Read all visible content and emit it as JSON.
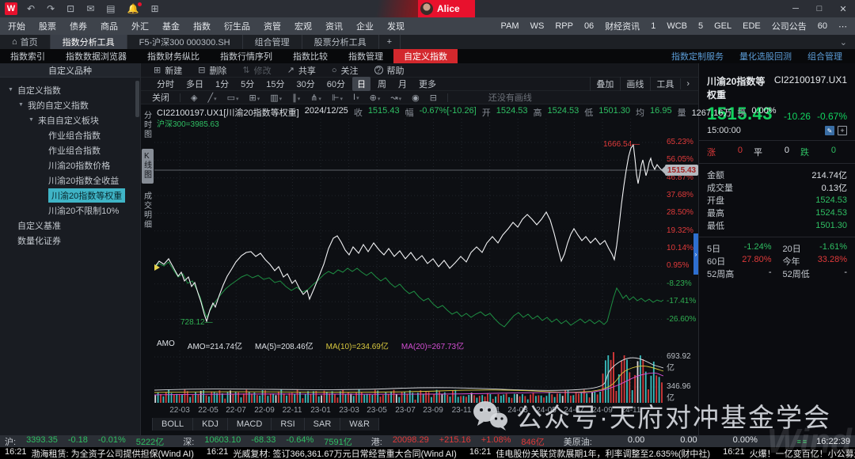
{
  "titlebar": {
    "logo": "W",
    "icons": [
      {
        "name": "undo-icon",
        "glyph": "↶"
      },
      {
        "name": "redo-icon",
        "glyph": "↷"
      },
      {
        "name": "screenshot-icon",
        "glyph": "⊡"
      },
      {
        "name": "chat-icon",
        "glyph": "✉"
      },
      {
        "name": "wp-icon",
        "glyph": "▤"
      },
      {
        "name": "bell-icon",
        "glyph": "🔔"
      },
      {
        "name": "f1-icon",
        "glyph": "⊞"
      }
    ],
    "user": "Alice",
    "window_controls": [
      {
        "name": "minimize-button",
        "glyph": "─"
      },
      {
        "name": "maximize-button",
        "glyph": "□"
      },
      {
        "name": "close-button",
        "glyph": "✕"
      }
    ]
  },
  "menu": {
    "items": [
      "开始",
      "股票",
      "债券",
      "商品",
      "外汇",
      "基金",
      "指数",
      "衍生品",
      "资管",
      "宏观",
      "资讯",
      "企业",
      "发现"
    ],
    "right_items": [
      "PAM",
      "WS",
      "RPP",
      "06",
      "财经资讯",
      "1",
      "WCB",
      "5",
      "GEL",
      "EDE",
      "公司公告",
      "60",
      "⋯"
    ]
  },
  "tabs": {
    "items": [
      {
        "label": "首页",
        "home": true
      },
      {
        "label": "指数分析工具",
        "active": true
      },
      {
        "label": "F5-沪深300 000300.SH"
      },
      {
        "label": "组合管理"
      },
      {
        "label": "股票分析工具"
      }
    ],
    "add": "+",
    "chevron": "⌄"
  },
  "subtabs": {
    "items": [
      {
        "label": "指数索引"
      },
      {
        "label": "指数数据浏览器"
      },
      {
        "label": "指数财务纵比"
      },
      {
        "label": "指数行情序列"
      },
      {
        "label": "指数比较"
      },
      {
        "label": "指数管理"
      },
      {
        "label": "自定义指数",
        "active": true
      }
    ],
    "right_links": [
      "指数定制服务",
      "量化选股回测",
      "组合管理"
    ]
  },
  "sidebar": {
    "header": "自定义品种",
    "tree": [
      {
        "label": "自定义指数",
        "depth": 0,
        "arrow": true
      },
      {
        "label": "我的自定义指数",
        "depth": 1,
        "arrow": true
      },
      {
        "label": "来自自定义板块",
        "depth": 2,
        "arrow": true
      },
      {
        "label": "作业组合指数",
        "depth": 3
      },
      {
        "label": "作业组合指数",
        "depth": 3
      },
      {
        "label": "川渝20指数价格",
        "depth": 3
      },
      {
        "label": "川渝20指数全收益",
        "depth": 3
      },
      {
        "label": "川渝20指数等权重",
        "depth": 3,
        "selected": true
      },
      {
        "label": "川渝20不限制10%",
        "depth": 3
      },
      {
        "label": "自定义基准",
        "depth": 0
      },
      {
        "label": "数量化证券",
        "depth": 0
      }
    ]
  },
  "toolbar": {
    "actions": [
      {
        "name": "new-button",
        "glyph": "⊞",
        "label": "新建"
      },
      {
        "name": "delete-button",
        "glyph": "⊟",
        "label": "删除"
      },
      {
        "name": "modify-button",
        "glyph": "⇅",
        "label": "修改",
        "disabled": true
      },
      {
        "name": "share-button",
        "glyph": "↗",
        "label": "共享"
      },
      {
        "name": "follow-button",
        "glyph": "○",
        "label": "关注"
      },
      {
        "name": "help-button",
        "glyph": "?",
        "label": "帮助",
        "circle": true
      }
    ],
    "periods": [
      "分时",
      "多日",
      "1分",
      "5分",
      "15分",
      "30分",
      "60分",
      "日",
      "周",
      "月",
      "更多"
    ],
    "active_period": "日",
    "overlay_tools": [
      "叠加",
      "画线",
      "工具"
    ],
    "overlay_arrow": "›",
    "drawing": {
      "close": "关闭",
      "icons": [
        {
          "name": "marker-tool-icon",
          "glyph": "◈"
        },
        {
          "name": "line-tool-icon",
          "glyph": "╱",
          "caret": true
        },
        {
          "name": "shape-tool-icon",
          "glyph": "▭",
          "caret": true
        },
        {
          "name": "rect-tool-icon",
          "glyph": "⊞",
          "caret": true
        },
        {
          "name": "band-tool-icon",
          "glyph": "▥",
          "caret": true
        },
        {
          "name": "parallel-tool-icon",
          "glyph": "∥",
          "caret": true
        },
        {
          "name": "fan-tool-icon",
          "glyph": "⋔",
          "caret": true
        },
        {
          "name": "fib-tool-icon",
          "glyph": "⊩",
          "caret": true
        },
        {
          "name": "text-tool-icon",
          "glyph": "I",
          "caret": true
        },
        {
          "name": "callout-tool-icon",
          "glyph": "⊕",
          "caret": true
        },
        {
          "name": "wave-tool-icon",
          "glyph": "↝",
          "caret": true
        },
        {
          "name": "visibility-icon",
          "glyph": "◉"
        },
        {
          "name": "trash-icon",
          "glyph": "⊟"
        }
      ],
      "note": "还没有画线"
    }
  },
  "chart": {
    "info_parts": [
      {
        "t": "CI22100197.UX1[川渝20指数等权重]",
        "c": "w"
      },
      {
        "t": "2024/12/25",
        "c": "w"
      },
      {
        "t": "收",
        "c": "l"
      },
      {
        "t": "1515.43",
        "c": "g"
      },
      {
        "t": "幅",
        "c": "l"
      },
      {
        "t": "-0.67%[-10.26]",
        "c": "g"
      },
      {
        "t": "开",
        "c": "l"
      },
      {
        "t": "1524.53",
        "c": "g"
      },
      {
        "t": "高",
        "c": "l"
      },
      {
        "t": "1524.53",
        "c": "g"
      },
      {
        "t": "低",
        "c": "l"
      },
      {
        "t": "1501.30",
        "c": "g"
      },
      {
        "t": "均",
        "c": "l"
      },
      {
        "t": "16.95",
        "c": "g"
      },
      {
        "t": "量",
        "c": "l"
      },
      {
        "t": "1267.16万",
        "c": "w"
      },
      {
        "t": "换",
        "c": "l"
      },
      {
        "t": "0.00%",
        "c": "w"
      }
    ],
    "compare_legend": "沪深300=3985.63",
    "left_tabs": [
      {
        "label": "分时图"
      },
      {
        "label": "K线图",
        "active": true
      },
      {
        "label": "成交明细"
      }
    ],
    "y_labels": [
      {
        "text": "65.23%",
        "neg": false
      },
      {
        "text": "56.05%",
        "neg": false
      },
      {
        "text": "46.87%",
        "neg": false
      },
      {
        "text": "37.68%",
        "neg": false
      },
      {
        "text": "28.50%",
        "neg": false
      },
      {
        "text": "19.32%",
        "neg": false
      },
      {
        "text": "10.14%",
        "neg": false
      },
      {
        "text": "0.95%",
        "neg": false
      },
      {
        "text": "-8.23%",
        "neg": true
      },
      {
        "text": "-17.41%",
        "neg": true
      },
      {
        "text": "-26.60%",
        "neg": true
      }
    ],
    "x_labels": [
      "22-03",
      "22-05",
      "22-07",
      "22-09",
      "22-11",
      "23-01",
      "23-03",
      "23-05",
      "23-07",
      "23-09",
      "23-11",
      "24-01",
      "24-03",
      "24-05",
      "24-07",
      "24-09",
      "24-11"
    ],
    "annotations": {
      "high": "1666.54—",
      "low": "728.12—",
      "current": "1515.43"
    },
    "amo_items": [
      {
        "t": "AMO",
        "c": "w"
      },
      {
        "t": "AMO=214.74亿",
        "c": "w"
      },
      {
        "t": "MA(5)=208.46亿",
        "c": "w"
      },
      {
        "t": "MA(10)=234.69亿",
        "c": "y"
      },
      {
        "t": "MA(20)=267.73亿",
        "c": "m"
      }
    ],
    "vol_labels": [
      "693.92亿",
      "346.96亿"
    ],
    "indicator_tabs": [
      "BOLL",
      "KDJ",
      "MACD",
      "RSI",
      "SAR",
      "W&R"
    ]
  },
  "chart_data": {
    "type": "line",
    "title": "川渝20指数等权重 CI22100197.UX1 日K 百分比涨幅 对比 沪深300",
    "x_labels": [
      "22-03",
      "22-05",
      "22-07",
      "22-09",
      "22-11",
      "23-01",
      "23-03",
      "23-05",
      "23-07",
      "23-09",
      "23-11",
      "24-01",
      "24-03",
      "24-05",
      "24-07",
      "24-09",
      "24-11"
    ],
    "y_axis_pct": [
      65.23,
      56.05,
      46.87,
      37.68,
      28.5,
      19.32,
      10.14,
      0.95,
      -8.23,
      -17.41,
      -26.6
    ],
    "series": [
      {
        "name": "川渝20指数等权重",
        "last": 1515.43,
        "change": -10.26,
        "change_pct": -0.67,
        "period_high": 1666.54,
        "period_low": 728.12
      },
      {
        "name": "沪深300",
        "last": 3985.63,
        "approx_end_pct": -17.41
      }
    ],
    "sub_chart": {
      "name": "AMO",
      "AMO": "214.74亿",
      "MA5": "208.46亿",
      "MA10": "234.69亿",
      "MA20": "267.73亿",
      "scale_labels": [
        "693.92亿",
        "346.96亿"
      ]
    }
  },
  "quote_panel": {
    "name": "川渝20指数等权重",
    "code": "CI22100197.UX1",
    "price": "1515.43",
    "change": "-10.26",
    "change_pct": "-0.67%",
    "time": "15:00:00",
    "up_label": "涨",
    "up": "0",
    "flat_label": "平",
    "flat": "0",
    "down_label": "跌",
    "down": "0",
    "rows": [
      {
        "label": "金额",
        "value": "214.74亿",
        "c": "w"
      },
      {
        "label": "成交量",
        "value": "0.13亿",
        "c": "w"
      },
      {
        "label": "开盘",
        "value": "1524.53",
        "c": "g"
      },
      {
        "label": "最高",
        "value": "1524.53",
        "c": "g"
      },
      {
        "label": "最低",
        "value": "1501.30",
        "c": "g"
      }
    ],
    "perf_rows": [
      [
        {
          "label": "5日",
          "value": "-1.24%",
          "c": "g"
        },
        {
          "label": "20日",
          "value": "-1.61%",
          "c": "g"
        }
      ],
      [
        {
          "label": "60日",
          "value": "27.80%",
          "c": "r"
        },
        {
          "label": "今年",
          "value": "33.28%",
          "c": "r"
        }
      ],
      [
        {
          "label": "52周高",
          "value": "-",
          "c": "w"
        },
        {
          "label": "52周低",
          "value": "-",
          "c": "w"
        }
      ]
    ]
  },
  "status_bar": {
    "segments": [
      {
        "label": "沪:",
        "values": [
          "3393.35",
          "-0.18",
          "-0.01%",
          "5222亿"
        ],
        "c": "g"
      },
      {
        "label": "深:",
        "values": [
          "10603.10",
          "-68.33",
          "-0.64%",
          "7591亿"
        ],
        "c": "g"
      },
      {
        "label": "港:",
        "values": [
          "20098.29",
          "+215.16",
          "+1.08%",
          "846亿"
        ],
        "c": "r"
      },
      {
        "label": "美原油:",
        "values": [
          "0.00",
          "0.00",
          "0.00%"
        ],
        "c": "w",
        "wide": true
      }
    ],
    "bars_glyph": "≡≡",
    "time": "16:22:39"
  },
  "news_bar": {
    "items": [
      {
        "time": "16:21",
        "text": "渤海租赁: 为全资子公司提供担保(Wind AI)"
      },
      {
        "time": "16:21",
        "text": "光威复材: 签订366,361.67万元日常经营重大合同(Wind AI)"
      },
      {
        "time": "16:21",
        "text": "佳电股份关联贷款展期1年，利率调整至2.635%(财中社)"
      },
      {
        "time": "16:21",
        "text": "火爆！一亿变百亿！小公募迷你..."
      }
    ],
    "search_placeholder": "代码/名称/简拼/功能"
  },
  "watermark": {
    "text": "公众号·天府对冲基金学会",
    "ghost": "Wind"
  }
}
